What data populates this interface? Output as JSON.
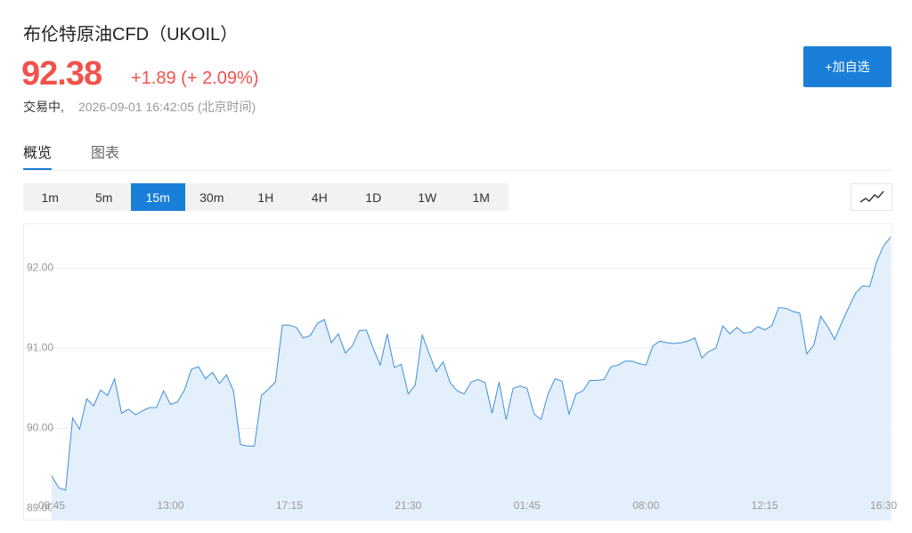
{
  "header": {
    "title": "布伦特原油CFD（UKOIL）",
    "price": "92.38",
    "change": "+1.89",
    "change_pct": "(+ 2.09%)",
    "status": "交易中,",
    "timestamp": "2026-09-01 16:42:05 (北京时间)",
    "button": "+加自选"
  },
  "tabs": [
    "概览",
    "图表"
  ],
  "active_tab": 0,
  "intervals": [
    "1m",
    "5m",
    "15m",
    "30m",
    "1H",
    "4H",
    "1D",
    "1W",
    "1M"
  ],
  "active_interval": 2,
  "chart_data": {
    "type": "area",
    "categories": [
      "08:45",
      null,
      null,
      null,
      null,
      null,
      null,
      null,
      null,
      null,
      null,
      null,
      null,
      null,
      null,
      null,
      null,
      "13:00",
      null,
      null,
      null,
      null,
      null,
      null,
      null,
      null,
      null,
      null,
      null,
      null,
      null,
      null,
      null,
      null,
      "17:15",
      null,
      null,
      null,
      null,
      null,
      null,
      null,
      null,
      null,
      null,
      null,
      null,
      null,
      null,
      null,
      null,
      "21:30",
      null,
      null,
      null,
      null,
      null,
      null,
      null,
      null,
      null,
      null,
      null,
      null,
      null,
      null,
      null,
      null,
      "01:45",
      null,
      null,
      null,
      null,
      null,
      null,
      null,
      null,
      null,
      null,
      null,
      null,
      null,
      null,
      null,
      null,
      "08:00",
      null,
      null,
      null,
      null,
      null,
      null,
      null,
      null,
      null,
      null,
      null,
      null,
      null,
      null,
      null,
      null,
      "12:15",
      null,
      null,
      null,
      null,
      null,
      null,
      null,
      null,
      null,
      null,
      null,
      null,
      null,
      null,
      null,
      null,
      "16:30",
      null
    ],
    "values": [
      89.41,
      89.26,
      89.23,
      90.13,
      89.99,
      90.37,
      90.28,
      90.48,
      90.41,
      90.62,
      90.19,
      90.24,
      90.17,
      90.22,
      90.26,
      90.26,
      90.47,
      90.3,
      90.33,
      90.48,
      90.74,
      90.77,
      90.62,
      90.7,
      90.56,
      90.67,
      90.47,
      89.8,
      89.78,
      89.78,
      90.41,
      90.49,
      90.58,
      91.29,
      91.29,
      91.26,
      91.13,
      91.16,
      91.31,
      91.36,
      91.07,
      91.18,
      90.94,
      91.03,
      91.22,
      91.23,
      91.0,
      90.79,
      91.18,
      90.76,
      90.8,
      90.43,
      90.54,
      91.17,
      90.93,
      90.71,
      90.83,
      90.57,
      90.47,
      90.43,
      90.58,
      90.61,
      90.57,
      90.19,
      90.58,
      90.11,
      90.5,
      90.53,
      90.5,
      90.18,
      90.11,
      90.43,
      90.62,
      90.59,
      90.18,
      90.43,
      90.47,
      90.6,
      90.6,
      90.61,
      90.77,
      90.79,
      90.84,
      90.84,
      90.81,
      90.79,
      91.03,
      91.09,
      91.07,
      91.06,
      91.07,
      91.09,
      91.13,
      90.88,
      90.96,
      91.0,
      91.28,
      91.18,
      91.26,
      91.19,
      91.2,
      91.27,
      91.23,
      91.28,
      91.51,
      91.5,
      91.46,
      91.44,
      90.93,
      91.04,
      91.4,
      91.27,
      91.11,
      91.32,
      91.51,
      91.69,
      91.78,
      91.77,
      92.08,
      92.28,
      92.39
    ],
    "color": "#3d8fd9",
    "fill": "#e4effc",
    "ylim": [
      88.85,
      92.56
    ],
    "yticks": [
      {
        "value": 89,
        "label": "89.00"
      },
      {
        "value": 90,
        "label": "90.00"
      },
      {
        "value": 91,
        "label": "91.00"
      },
      {
        "value": 92,
        "label": "92.00"
      }
    ],
    "grid": true
  }
}
